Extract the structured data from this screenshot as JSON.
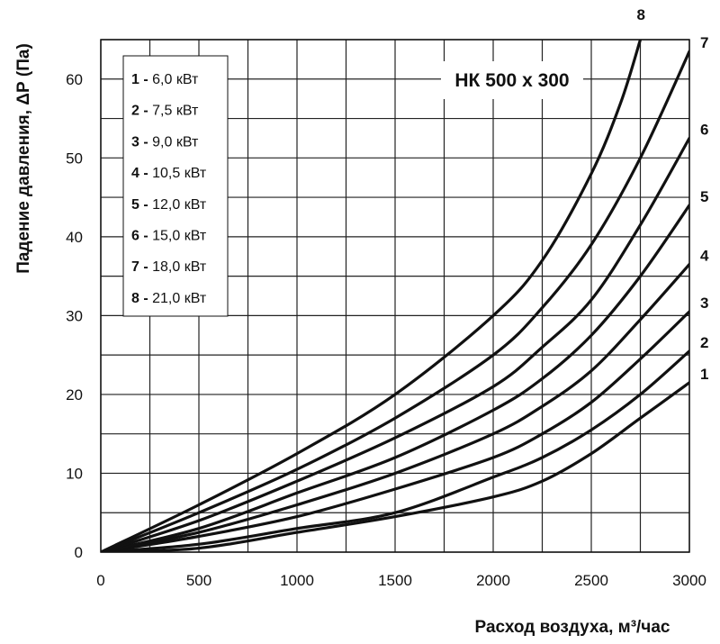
{
  "chart_data": {
    "type": "line",
    "title": "НК 500 x 300",
    "xlabel": "Расход воздуха, м³/час",
    "ylabel": "Падение давления, ΔР (Па)",
    "xlim": [
      0,
      3000
    ],
    "ylim": [
      0,
      65
    ],
    "x_ticks": [
      0,
      500,
      1000,
      1500,
      2000,
      2500,
      3000
    ],
    "y_ticks": [
      0,
      10,
      20,
      30,
      40,
      50,
      60
    ],
    "grid": true,
    "legend_position": "top-left",
    "series": [
      {
        "name": "1",
        "legend": "6,0 кВт",
        "points": [
          [
            0,
            0
          ],
          [
            500,
            0.5
          ],
          [
            1000,
            2.5
          ],
          [
            1500,
            4.5
          ],
          [
            2000,
            7
          ],
          [
            2250,
            9
          ],
          [
            2500,
            12.5
          ],
          [
            2750,
            17
          ],
          [
            3000,
            21.5
          ]
        ]
      },
      {
        "name": "2",
        "legend": "7,5 кВт",
        "points": [
          [
            0,
            0
          ],
          [
            500,
            1
          ],
          [
            1000,
            3
          ],
          [
            1500,
            5
          ],
          [
            2000,
            9.5
          ],
          [
            2250,
            12
          ],
          [
            2500,
            15.5
          ],
          [
            2750,
            20
          ],
          [
            3000,
            25.5
          ]
        ]
      },
      {
        "name": "3",
        "legend": "9,0 кВт",
        "points": [
          [
            0,
            0
          ],
          [
            500,
            2
          ],
          [
            1000,
            4.5
          ],
          [
            1500,
            8
          ],
          [
            2000,
            12
          ],
          [
            2250,
            15
          ],
          [
            2500,
            19
          ],
          [
            2750,
            24.5
          ],
          [
            3000,
            30.5
          ]
        ]
      },
      {
        "name": "4",
        "legend": "10,5 кВт",
        "points": [
          [
            0,
            0
          ],
          [
            500,
            2.5
          ],
          [
            1000,
            6
          ],
          [
            1500,
            10
          ],
          [
            2000,
            15
          ],
          [
            2250,
            18.5
          ],
          [
            2500,
            23
          ],
          [
            2750,
            29.5
          ],
          [
            3000,
            36.5
          ]
        ]
      },
      {
        "name": "5",
        "legend": "12,0 кВт",
        "points": [
          [
            0,
            0
          ],
          [
            500,
            3
          ],
          [
            1000,
            7.5
          ],
          [
            1500,
            12
          ],
          [
            2000,
            18
          ],
          [
            2250,
            22
          ],
          [
            2500,
            27.5
          ],
          [
            2750,
            35
          ],
          [
            3000,
            44
          ]
        ]
      },
      {
        "name": "6",
        "legend": "15,0 кВт",
        "points": [
          [
            0,
            0
          ],
          [
            500,
            4
          ],
          [
            1000,
            9
          ],
          [
            1500,
            14.5
          ],
          [
            2000,
            21
          ],
          [
            2250,
            26
          ],
          [
            2500,
            32
          ],
          [
            2750,
            41.5
          ],
          [
            3000,
            52.5
          ]
        ]
      },
      {
        "name": "7",
        "legend": "18,0 кВт",
        "points": [
          [
            0,
            0
          ],
          [
            500,
            5
          ],
          [
            1000,
            10.5
          ],
          [
            1500,
            17
          ],
          [
            2000,
            25
          ],
          [
            2250,
            31
          ],
          [
            2500,
            39
          ],
          [
            2750,
            50
          ],
          [
            3000,
            63.5
          ]
        ]
      },
      {
        "name": "8",
        "legend": "21,0 кВт",
        "points": [
          [
            0,
            0
          ],
          [
            500,
            6
          ],
          [
            1000,
            12.5
          ],
          [
            1500,
            20
          ],
          [
            2000,
            30
          ],
          [
            2250,
            37
          ],
          [
            2500,
            48
          ],
          [
            2650,
            57
          ],
          [
            2750,
            65
          ]
        ]
      }
    ]
  }
}
